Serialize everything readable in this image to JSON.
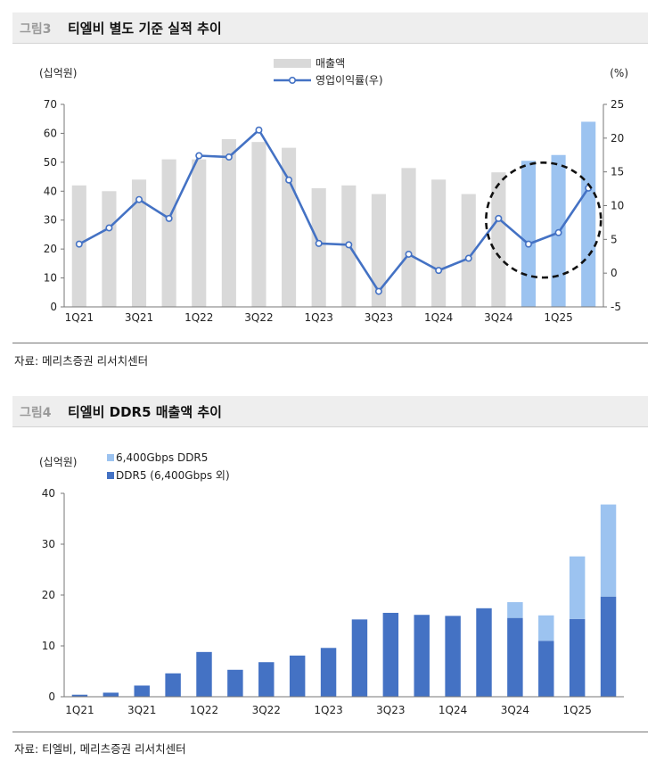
{
  "figure3": {
    "number": "그림3",
    "title": "티엘비 별도 기준 실적 추이",
    "source": "자료: 메리츠증권 리서치센터",
    "left_unit": "(십억원)",
    "right_unit": "(%)",
    "colors": {
      "bar": "#d9d9d9",
      "bar_highlight": "#9cc3f0",
      "line": "#4472c4",
      "circle": "#111111"
    },
    "chart_data": {
      "type": "bar",
      "categories": [
        "1Q21",
        "2Q21",
        "3Q21",
        "4Q21",
        "1Q22",
        "2Q22",
        "3Q22",
        "4Q22",
        "1Q23",
        "2Q23",
        "3Q23",
        "4Q23",
        "1Q24",
        "2Q24",
        "3Q24",
        "4Q24",
        "1Q25",
        "2Q25"
      ],
      "tick_labels": [
        "1Q21",
        "",
        "3Q21",
        "",
        "1Q22",
        "",
        "3Q22",
        "",
        "1Q23",
        "",
        "3Q23",
        "",
        "1Q24",
        "",
        "3Q24",
        "",
        "1Q25",
        ""
      ],
      "series": [
        {
          "name": "매출액",
          "type": "bar",
          "axis": "left",
          "values": [
            42,
            40,
            44,
            51,
            51,
            58,
            57,
            55,
            41,
            42,
            39,
            48,
            44,
            39,
            46.5,
            50.5,
            52.5,
            64
          ],
          "highlight_from_index": 15
        },
        {
          "name": "영업이익률(우)",
          "type": "line",
          "axis": "right",
          "values": [
            4.3,
            6.7,
            10.9,
            8.1,
            17.4,
            17.2,
            21.2,
            13.8,
            4.4,
            4.2,
            -2.7,
            2.8,
            0.4,
            2.2,
            8.1,
            4.3,
            6.0,
            12.6
          ]
        }
      ],
      "ylim_left": [
        0,
        70
      ],
      "yticks_left": [
        0,
        10,
        20,
        30,
        40,
        50,
        60,
        70
      ],
      "ylim_right": [
        -5,
        25
      ],
      "yticks_right": [
        -5,
        0,
        5,
        10,
        15,
        20,
        25
      ],
      "highlight_circle_around": [
        "3Q24",
        "4Q24",
        "1Q25",
        "2Q25"
      ]
    }
  },
  "figure4": {
    "number": "그림4",
    "title": "티엘비 DDR5 매출액 추이",
    "source": "자료: 티엘비, 메리츠증권 리서치센터",
    "left_unit": "(십억원)",
    "colors": {
      "base": "#4472c4",
      "top": "#9cc3f0"
    },
    "chart_data": {
      "type": "bar",
      "stacked": true,
      "categories": [
        "1Q21",
        "2Q21",
        "3Q21",
        "4Q21",
        "1Q22",
        "2Q22",
        "3Q22",
        "4Q22",
        "1Q23",
        "2Q23",
        "3Q23",
        "4Q23",
        "1Q24",
        "2Q24",
        "3Q24",
        "4Q24",
        "1Q25",
        "2Q25"
      ],
      "tick_labels": [
        "1Q21",
        "",
        "3Q21",
        "",
        "1Q22",
        "",
        "3Q22",
        "",
        "1Q23",
        "",
        "3Q23",
        "",
        "1Q24",
        "",
        "3Q24",
        "",
        "1Q25",
        ""
      ],
      "series": [
        {
          "name": "DDR5 (6,400Gbps 외)",
          "values": [
            0.4,
            0.8,
            2.2,
            4.6,
            8.8,
            5.3,
            6.8,
            8.1,
            9.6,
            15.2,
            16.5,
            16.1,
            15.9,
            17.4,
            15.5,
            11.0,
            15.3,
            19.7
          ]
        },
        {
          "name": "6,400Gbps DDR5",
          "values": [
            0,
            0,
            0,
            0,
            0,
            0,
            0,
            0,
            0,
            0,
            0,
            0,
            0,
            0,
            3.1,
            5.0,
            12.3,
            18.1
          ]
        }
      ],
      "ylim": [
        0,
        40
      ],
      "yticks": [
        0,
        10,
        20,
        30,
        40
      ]
    }
  }
}
